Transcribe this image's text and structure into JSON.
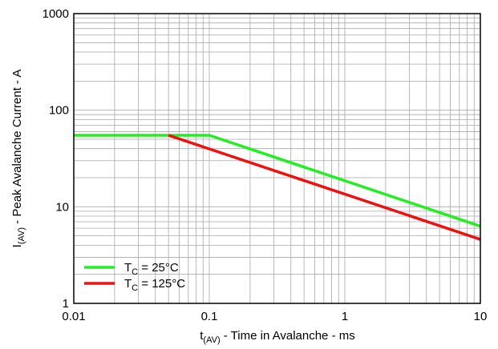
{
  "chart_data": {
    "type": "line",
    "x_scale": "log",
    "y_scale": "log",
    "xlim": [
      0.01,
      10
    ],
    "ylim": [
      1,
      1000
    ],
    "x_ticks": [
      "0.01",
      "0.1",
      "1",
      "10"
    ],
    "y_ticks": [
      "1",
      "10",
      "100",
      "1000"
    ],
    "grid": true,
    "xlabel": {
      "main": "t",
      "sub": "(AV)",
      "rest": " - Time in Avalanche - ms"
    },
    "ylabel": {
      "main": "I",
      "sub": "(AV)",
      "rest": " - Peak Avalanche Current - A"
    },
    "legend_position": "bottom-left",
    "series": [
      {
        "name": "TC = 25°C",
        "label": {
          "pre": "T",
          "sub": "C",
          "post": " = 25°C"
        },
        "color": "#22ee22",
        "points": [
          [
            0.01,
            55
          ],
          [
            0.1,
            55
          ],
          [
            10,
            6.3
          ]
        ]
      },
      {
        "name": "TC = 125°C",
        "label": {
          "pre": "T",
          "sub": "C",
          "post": " = 125°C"
        },
        "color": "#ee1111",
        "points": [
          [
            0.05,
            55
          ],
          [
            10,
            4.6
          ]
        ]
      }
    ]
  }
}
